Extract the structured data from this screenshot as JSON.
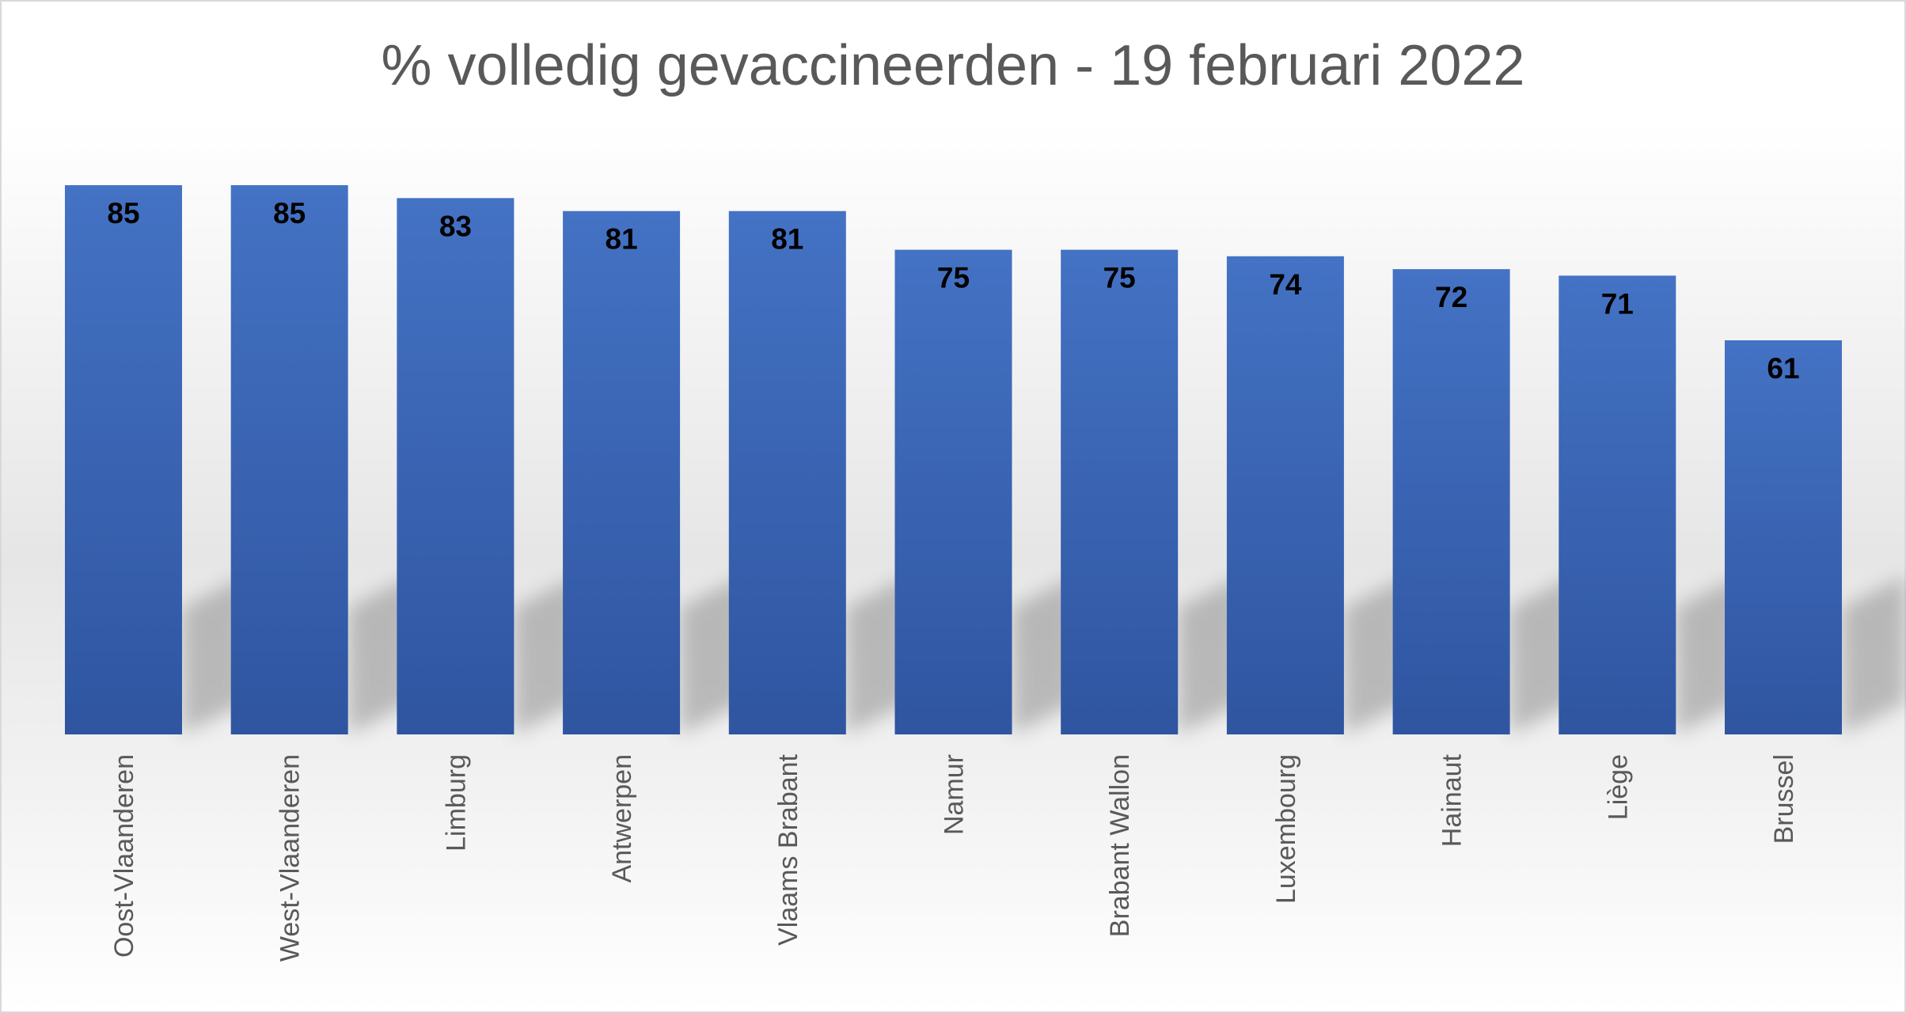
{
  "chart_data": {
    "type": "bar",
    "title": "% volledig gevaccineerden - 19 februari 2022",
    "categories": [
      "Oost-Vlaanderen",
      "West-Vlaanderen",
      "Limburg",
      "Antwerpen",
      "Vlaams Brabant",
      "Namur",
      "Brabant Wallon",
      "Luxembourg",
      "Hainaut",
      "Liège",
      "Brussel"
    ],
    "values": [
      85,
      85,
      83,
      81,
      81,
      75,
      75,
      74,
      72,
      71,
      61
    ],
    "xlabel": "",
    "ylabel": "",
    "ylim": [
      0,
      85
    ],
    "grid": false,
    "legend": "none",
    "data_labels": "inside-end",
    "colors": {
      "bar_top": "#4472c4",
      "bar_bottom": "#2f55a0",
      "title": "#595959",
      "category_label": "#595959",
      "data_label": "#000000"
    }
  }
}
